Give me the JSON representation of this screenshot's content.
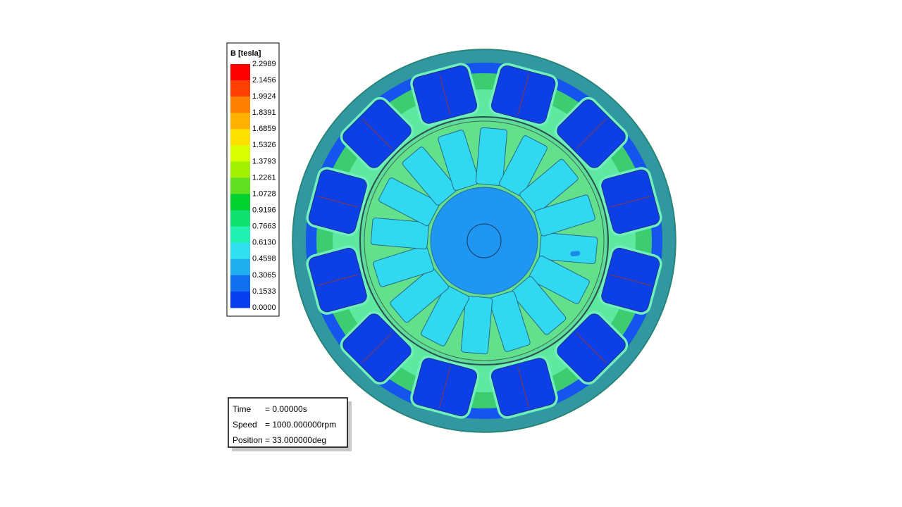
{
  "legend": {
    "title": "B [tesla]",
    "labels": [
      "2.2989",
      "2.1456",
      "1.9924",
      "1.8391",
      "1.6859",
      "1.5326",
      "1.3793",
      "1.2261",
      "1.0728",
      "0.9196",
      "0.7663",
      "0.6130",
      "0.4598",
      "0.3065",
      "0.1533",
      "0.0000"
    ]
  },
  "info": {
    "rows": [
      [
        "Time",
        "= 0.00000s"
      ],
      [
        "Speed",
        "= 1000.000000rpm"
      ],
      [
        "Position",
        "= 33.000000deg"
      ]
    ]
  }
}
